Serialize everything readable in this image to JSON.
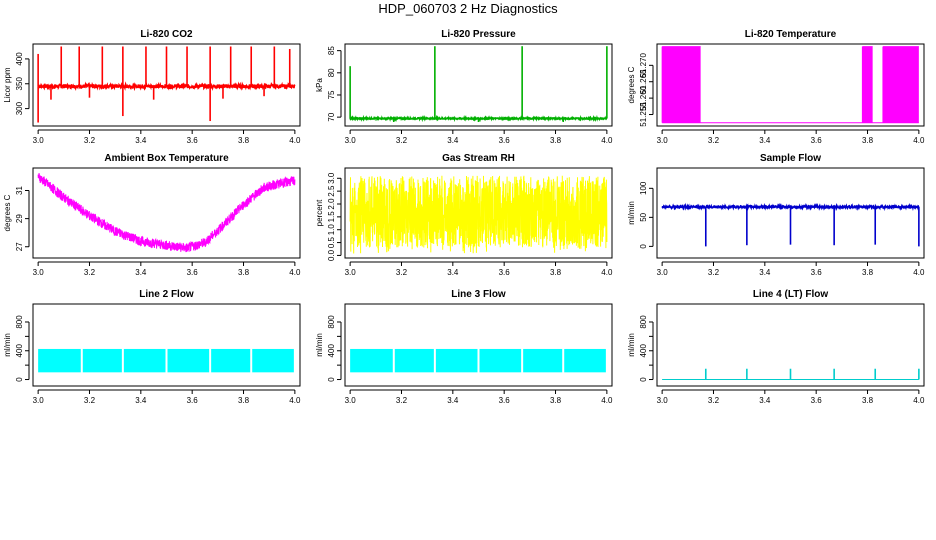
{
  "figure": {
    "title": "HDP_060703  2 Hz Diagnostics"
  },
  "chart_data": [
    {
      "type": "line",
      "title": "Li-820 CO2",
      "ylabel": "Licor ppm",
      "color": "#ff0000",
      "xlim": [
        2.98,
        4.02
      ],
      "ylim": [
        265,
        430
      ],
      "x_ticks": [
        3.0,
        3.2,
        3.4,
        3.6,
        3.8,
        4.0
      ],
      "x_tick_labels": [
        "3.0",
        "3.2",
        "3.4",
        "3.6",
        "3.8",
        "4.0"
      ],
      "y_ticks": [
        300,
        350,
        400
      ],
      "y_tick_labels": [
        "300",
        "350",
        "400"
      ],
      "baseline": 345,
      "noise": 4,
      "spikes_up": [
        {
          "x": 3.0,
          "y": 410
        },
        {
          "x": 3.09,
          "y": 425
        },
        {
          "x": 3.16,
          "y": 425
        },
        {
          "x": 3.25,
          "y": 425
        },
        {
          "x": 3.33,
          "y": 425
        },
        {
          "x": 3.42,
          "y": 425
        },
        {
          "x": 3.5,
          "y": 425
        },
        {
          "x": 3.58,
          "y": 425
        },
        {
          "x": 3.67,
          "y": 425
        },
        {
          "x": 3.75,
          "y": 425
        },
        {
          "x": 3.83,
          "y": 425
        },
        {
          "x": 3.92,
          "y": 425
        },
        {
          "x": 3.98,
          "y": 420
        }
      ],
      "spikes_down": [
        {
          "x": 3.0,
          "y": 272
        },
        {
          "x": 3.33,
          "y": 285
        },
        {
          "x": 3.67,
          "y": 275
        },
        {
          "x": 3.05,
          "y": 318
        },
        {
          "x": 3.2,
          "y": 322
        },
        {
          "x": 3.45,
          "y": 318
        },
        {
          "x": 3.72,
          "y": 320
        },
        {
          "x": 3.88,
          "y": 325
        }
      ]
    },
    {
      "type": "line",
      "title": "Li-820 Pressure",
      "ylabel": "kPa",
      "color": "#00b000",
      "xlim": [
        2.98,
        4.02
      ],
      "ylim": [
        68,
        86.5
      ],
      "x_ticks": [
        3.0,
        3.2,
        3.4,
        3.6,
        3.8,
        4.0
      ],
      "x_tick_labels": [
        "3.0",
        "3.2",
        "3.4",
        "3.6",
        "3.8",
        "4.0"
      ],
      "y_ticks": [
        70,
        75,
        80,
        85
      ],
      "y_tick_labels": [
        "70",
        "75",
        "80",
        "85"
      ],
      "baseline": 69.7,
      "noise": 0.15,
      "spikes_up": [
        {
          "x": 3.0,
          "y": 81.5
        },
        {
          "x": 3.33,
          "y": 86
        },
        {
          "x": 3.67,
          "y": 86
        },
        {
          "x": 4.0,
          "y": 86
        }
      ],
      "spikes_down": [
        {
          "x": 3.17,
          "y": 68.9
        },
        {
          "x": 3.5,
          "y": 68.9
        },
        {
          "x": 3.83,
          "y": 68.9
        }
      ]
    },
    {
      "type": "line",
      "title": "Li-820 Temperature",
      "ylabel": "degrees C",
      "color": "#ff00ff",
      "xlim": [
        2.98,
        4.02
      ],
      "ylim": [
        51.2515,
        51.2765
      ],
      "x_ticks": [
        3.0,
        3.2,
        3.4,
        3.6,
        3.8,
        4.0
      ],
      "x_tick_labels": [
        "3.0",
        "3.2",
        "3.4",
        "3.6",
        "3.8",
        "4.0"
      ],
      "y_ticks": [
        51.255,
        51.26,
        51.265,
        51.27
      ],
      "y_tick_labels": [
        "51.255",
        "51.260",
        "51.265",
        "51.270"
      ],
      "low": 51.2525,
      "high": 51.2757,
      "dense_ranges": [
        [
          3.0,
          3.15
        ],
        [
          3.78,
          3.82
        ],
        [
          3.86,
          4.0
        ]
      ]
    },
    {
      "type": "line",
      "title": "Ambient Box Temperature",
      "ylabel": "degrees C",
      "color": "#ff00ff",
      "xlim": [
        2.98,
        4.02
      ],
      "ylim": [
        26.2,
        32.6
      ],
      "x_ticks": [
        3.0,
        3.2,
        3.4,
        3.6,
        3.8,
        4.0
      ],
      "x_tick_labels": [
        "3.0",
        "3.2",
        "3.4",
        "3.6",
        "3.8",
        "4.0"
      ],
      "y_ticks": [
        27,
        29,
        31
      ],
      "y_tick_labels": [
        "27",
        "29",
        "31"
      ],
      "curve": [
        {
          "x": 3.0,
          "y": 32.0
        },
        {
          "x": 3.1,
          "y": 30.5
        },
        {
          "x": 3.2,
          "y": 29.2
        },
        {
          "x": 3.3,
          "y": 28.1
        },
        {
          "x": 3.4,
          "y": 27.4
        },
        {
          "x": 3.5,
          "y": 27.1
        },
        {
          "x": 3.58,
          "y": 26.9
        },
        {
          "x": 3.65,
          "y": 27.3
        },
        {
          "x": 3.72,
          "y": 28.5
        },
        {
          "x": 3.8,
          "y": 30.0
        },
        {
          "x": 3.88,
          "y": 31.2
        },
        {
          "x": 3.94,
          "y": 31.5
        },
        {
          "x": 4.0,
          "y": 31.7
        }
      ],
      "noise": 0.35
    },
    {
      "type": "line",
      "title": "Gas Stream RH",
      "ylabel": "percent",
      "color": "#ffff00",
      "xlim": [
        2.98,
        4.02
      ],
      "ylim": [
        -0.1,
        3.4
      ],
      "x_ticks": [
        3.0,
        3.2,
        3.4,
        3.6,
        3.8,
        4.0
      ],
      "x_tick_labels": [
        "3.0",
        "3.2",
        "3.4",
        "3.6",
        "3.8",
        "4.0"
      ],
      "y_ticks": [
        0.0,
        0.5,
        1.0,
        1.5,
        2.0,
        2.5,
        3.0
      ],
      "y_tick_labels": [
        "0.0",
        "0.5",
        "1.0",
        "1.5",
        "2.0",
        "2.5",
        "3.0"
      ],
      "band": [
        0.3,
        3.1
      ]
    },
    {
      "type": "line",
      "title": "Sample Flow",
      "ylabel": "ml/min",
      "color": "#0000cc",
      "xlim": [
        2.98,
        4.02
      ],
      "ylim": [
        -20,
        135
      ],
      "x_ticks": [
        3.0,
        3.2,
        3.4,
        3.6,
        3.8,
        4.0
      ],
      "x_tick_labels": [
        "3.0",
        "3.2",
        "3.4",
        "3.6",
        "3.8",
        "4.0"
      ],
      "y_ticks": [
        0,
        50,
        100
      ],
      "y_tick_labels": [
        "0",
        "50",
        "100"
      ],
      "baseline": 68,
      "noise": 2,
      "spikes_down": [
        {
          "x": 3.17,
          "y": 0
        },
        {
          "x": 3.33,
          "y": 2
        },
        {
          "x": 3.5,
          "y": 3
        },
        {
          "x": 3.67,
          "y": 2
        },
        {
          "x": 3.83,
          "y": 3
        },
        {
          "x": 4.0,
          "y": 0
        }
      ]
    },
    {
      "type": "area",
      "title": "Line 2 Flow",
      "ylabel": "ml/min",
      "color": "#00ffff",
      "xlim": [
        2.98,
        4.02
      ],
      "ylim": [
        -90,
        1050
      ],
      "x_ticks": [
        3.0,
        3.2,
        3.4,
        3.6,
        3.8,
        4.0
      ],
      "x_tick_labels": [
        "3.0",
        "3.2",
        "3.4",
        "3.6",
        "3.8",
        "4.0"
      ],
      "y_ticks": [
        0,
        200,
        400,
        600,
        800
      ],
      "y_tick_labels": [
        "0",
        "400",
        "800"
      ],
      "y_label_ticks": [
        0,
        400,
        800
      ],
      "band": [
        100,
        425
      ],
      "gaps": [
        3.17,
        3.33,
        3.5,
        3.67,
        3.83
      ]
    },
    {
      "type": "area",
      "title": "Line 3 Flow",
      "ylabel": "ml/min",
      "color": "#00ffff",
      "xlim": [
        2.98,
        4.02
      ],
      "ylim": [
        -90,
        1050
      ],
      "x_ticks": [
        3.0,
        3.2,
        3.4,
        3.6,
        3.8,
        4.0
      ],
      "x_tick_labels": [
        "3.0",
        "3.2",
        "3.4",
        "3.6",
        "3.8",
        "4.0"
      ],
      "y_ticks": [
        0,
        200,
        400,
        600,
        800
      ],
      "y_tick_labels": [
        "0",
        "400",
        "800"
      ],
      "y_label_ticks": [
        0,
        400,
        800
      ],
      "band": [
        100,
        425
      ],
      "gaps": [
        3.17,
        3.33,
        3.5,
        3.67,
        3.83
      ]
    },
    {
      "type": "line",
      "title": "Line 4 (LT) Flow",
      "ylabel": "ml/min",
      "color": "#00cccc",
      "xlim": [
        2.98,
        4.02
      ],
      "ylim": [
        -90,
        1050
      ],
      "x_ticks": [
        3.0,
        3.2,
        3.4,
        3.6,
        3.8,
        4.0
      ],
      "x_tick_labels": [
        "3.0",
        "3.2",
        "3.4",
        "3.6",
        "3.8",
        "4.0"
      ],
      "y_ticks": [
        0,
        200,
        400,
        600,
        800
      ],
      "y_tick_labels": [
        "0",
        "400",
        "800"
      ],
      "y_label_ticks": [
        0,
        400,
        800
      ],
      "baseline": 0,
      "spikes_up": [
        {
          "x": 3.17,
          "y": 150
        },
        {
          "x": 3.33,
          "y": 150
        },
        {
          "x": 3.5,
          "y": 150
        },
        {
          "x": 3.67,
          "y": 150
        },
        {
          "x": 3.83,
          "y": 150
        },
        {
          "x": 4.0,
          "y": 150
        }
      ]
    }
  ]
}
